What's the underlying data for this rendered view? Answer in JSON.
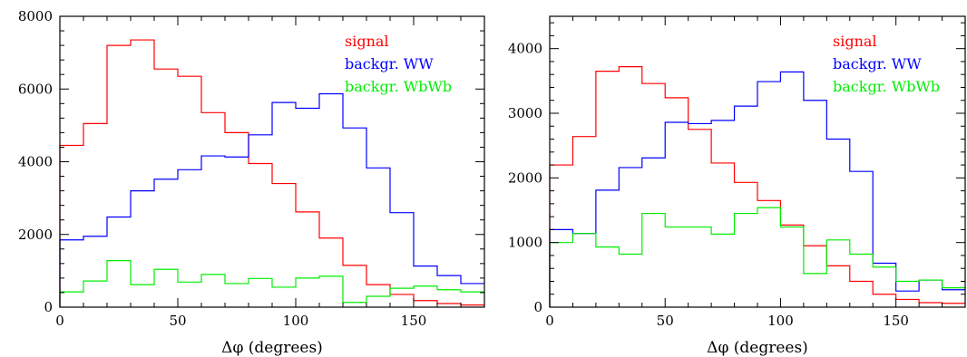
{
  "chart_data": [
    {
      "type": "step-histogram",
      "xlabel": "Δφ  (degrees)",
      "xlim": [
        0,
        180
      ],
      "ylim": [
        0,
        8000
      ],
      "x_ticks": [
        0,
        50,
        100,
        150
      ],
      "y_ticks": [
        0,
        2000,
        4000,
        6000,
        8000
      ],
      "bin_edges": [
        0,
        10,
        20,
        30,
        40,
        50,
        60,
        70,
        80,
        90,
        100,
        110,
        120,
        130,
        140,
        150,
        160,
        170,
        180
      ],
      "legend_position": "top-right",
      "series": [
        {
          "name": "signal",
          "color": "#ff0000",
          "values": [
            4450,
            5050,
            7200,
            7350,
            6550,
            6350,
            5350,
            4800,
            3950,
            3400,
            2620,
            1900,
            1150,
            620,
            350,
            180,
            100,
            60
          ]
        },
        {
          "name": "backgr. WW",
          "color": "#0000ff",
          "values": [
            1850,
            1950,
            2480,
            3200,
            3520,
            3780,
            4160,
            4130,
            4740,
            5630,
            5470,
            5870,
            4930,
            3830,
            2600,
            1130,
            870,
            650
          ]
        },
        {
          "name": "backgr. WbWb",
          "color": "#00ee00",
          "values": [
            420,
            720,
            1280,
            620,
            1040,
            690,
            900,
            650,
            790,
            550,
            800,
            850,
            130,
            300,
            520,
            580,
            480,
            420
          ]
        }
      ]
    },
    {
      "type": "step-histogram",
      "xlabel": "Δφ  (degrees)",
      "xlim": [
        0,
        180
      ],
      "ylim": [
        0,
        4500
      ],
      "x_ticks": [
        0,
        50,
        100,
        150
      ],
      "y_ticks": [
        0,
        1000,
        2000,
        3000,
        4000
      ],
      "bin_edges": [
        0,
        10,
        20,
        30,
        40,
        50,
        60,
        70,
        80,
        90,
        100,
        110,
        120,
        130,
        140,
        150,
        160,
        170,
        180
      ],
      "legend_position": "top-right",
      "series": [
        {
          "name": "signal",
          "color": "#ff0000",
          "values": [
            2200,
            2640,
            3650,
            3720,
            3460,
            3240,
            2750,
            2230,
            1930,
            1650,
            1270,
            950,
            640,
            400,
            200,
            120,
            70,
            60
          ]
        },
        {
          "name": "backgr. WW",
          "color": "#0000ff",
          "values": [
            1200,
            1140,
            1810,
            2160,
            2310,
            2860,
            2840,
            2890,
            3110,
            3490,
            3640,
            3200,
            2600,
            2100,
            680,
            250,
            420,
            270
          ]
        },
        {
          "name": "backgr. WbWb",
          "color": "#00ee00",
          "values": [
            1000,
            1140,
            930,
            820,
            1450,
            1240,
            1240,
            1130,
            1450,
            1540,
            1240,
            520,
            1040,
            820,
            620,
            400,
            420,
            300
          ]
        }
      ]
    }
  ]
}
